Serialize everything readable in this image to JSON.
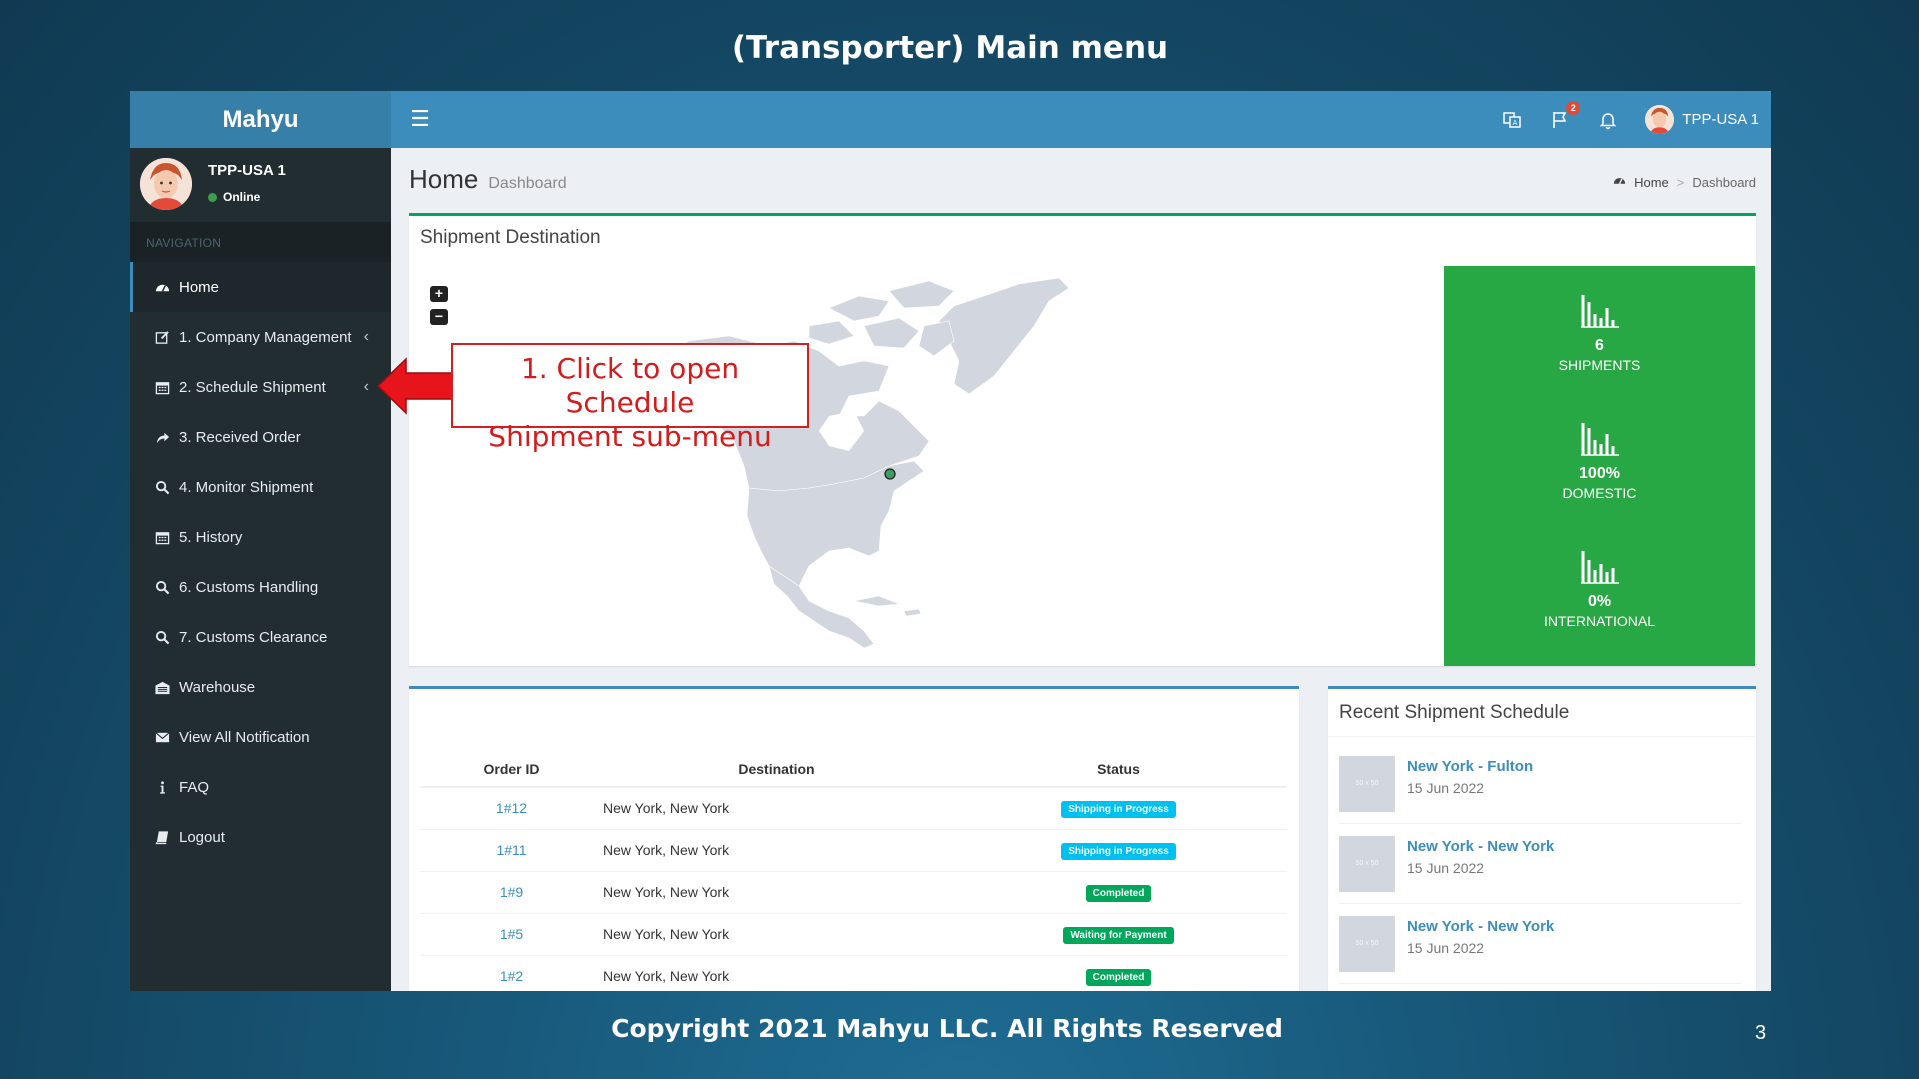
{
  "slide": {
    "title": "(Transporter) Main menu",
    "footer": "Copyright 2021 Mahyu LLC. All Rights Reserved",
    "page_number": "3"
  },
  "topbar": {
    "brand": "Mahyu",
    "user_name": "TPP-USA 1",
    "flag_badge": "2",
    "icons": [
      "translate-icon",
      "flag-icon",
      "bell-icon",
      "user-avatar"
    ]
  },
  "sidebar": {
    "user_name": "TPP-USA 1",
    "status": "Online",
    "nav_header": "NAVIGATION",
    "items": [
      {
        "label": "Home",
        "icon": "dashboard-icon"
      },
      {
        "label": "1. Company Management",
        "icon": "edit-icon"
      },
      {
        "label": "2. Schedule Shipment",
        "icon": "calendar-icon"
      },
      {
        "label": "3. Received Order",
        "icon": "share-icon"
      },
      {
        "label": "4. Monitor Shipment",
        "icon": "search-icon"
      },
      {
        "label": "5. History",
        "icon": "calendar-icon"
      },
      {
        "label": "6. Customs Handling",
        "icon": "search-icon"
      },
      {
        "label": "7. Customs Clearance",
        "icon": "search-icon"
      },
      {
        "label": "Warehouse",
        "icon": "warehouse-icon"
      },
      {
        "label": "View All Notification",
        "icon": "envelope-icon"
      },
      {
        "label": "FAQ",
        "icon": "info-icon"
      },
      {
        "label": "Logout",
        "icon": "book-icon"
      }
    ]
  },
  "content": {
    "title": "Home",
    "subtitle": "Dashboard",
    "breadcrumb": {
      "home": "Home",
      "sep": ">",
      "current": "Dashboard"
    }
  },
  "map_box": {
    "title": "Shipment Destination",
    "zoom_in": "+",
    "zoom_out": "−",
    "stats": [
      {
        "value": "6",
        "label": "SHIPMENTS"
      },
      {
        "value": "100%",
        "label": "DOMESTIC"
      },
      {
        "value": "0%",
        "label": "INTERNATIONAL"
      }
    ]
  },
  "orders": {
    "headers": [
      "Order ID",
      "Destination",
      "Status"
    ],
    "rows": [
      {
        "id": "1#12",
        "destination": "New York, New York",
        "status": "Shipping in Progress",
        "color": "#00c0ef"
      },
      {
        "id": "1#11",
        "destination": "New York, New York",
        "status": "Shipping in Progress",
        "color": "#00c0ef"
      },
      {
        "id": "1#9",
        "destination": "New York, New York",
        "status": "Completed",
        "color": "#00a65a"
      },
      {
        "id": "1#5",
        "destination": "New York, New York",
        "status": "Waiting for Payment",
        "color": "#00a65a"
      },
      {
        "id": "1#2",
        "destination": "New York, New York",
        "status": "Completed",
        "color": "#00a65a"
      }
    ]
  },
  "recent": {
    "title": "Recent Shipment Schedule",
    "thumb_text": "50 x 50",
    "items": [
      {
        "name": "New York - Fulton",
        "date": "15 Jun 2022"
      },
      {
        "name": "New York - New York",
        "date": "15 Jun 2022"
      },
      {
        "name": "New York - New York",
        "date": "15 Jun 2022"
      }
    ]
  },
  "callout": {
    "line1": "1. Click to open Schedule",
    "line2": "Shipment sub-menu"
  },
  "colors": {
    "topbar": "#3c8dbc",
    "sidebar": "#222d32",
    "stats_green": "#27a844",
    "callout_red": "#d21f1f"
  }
}
